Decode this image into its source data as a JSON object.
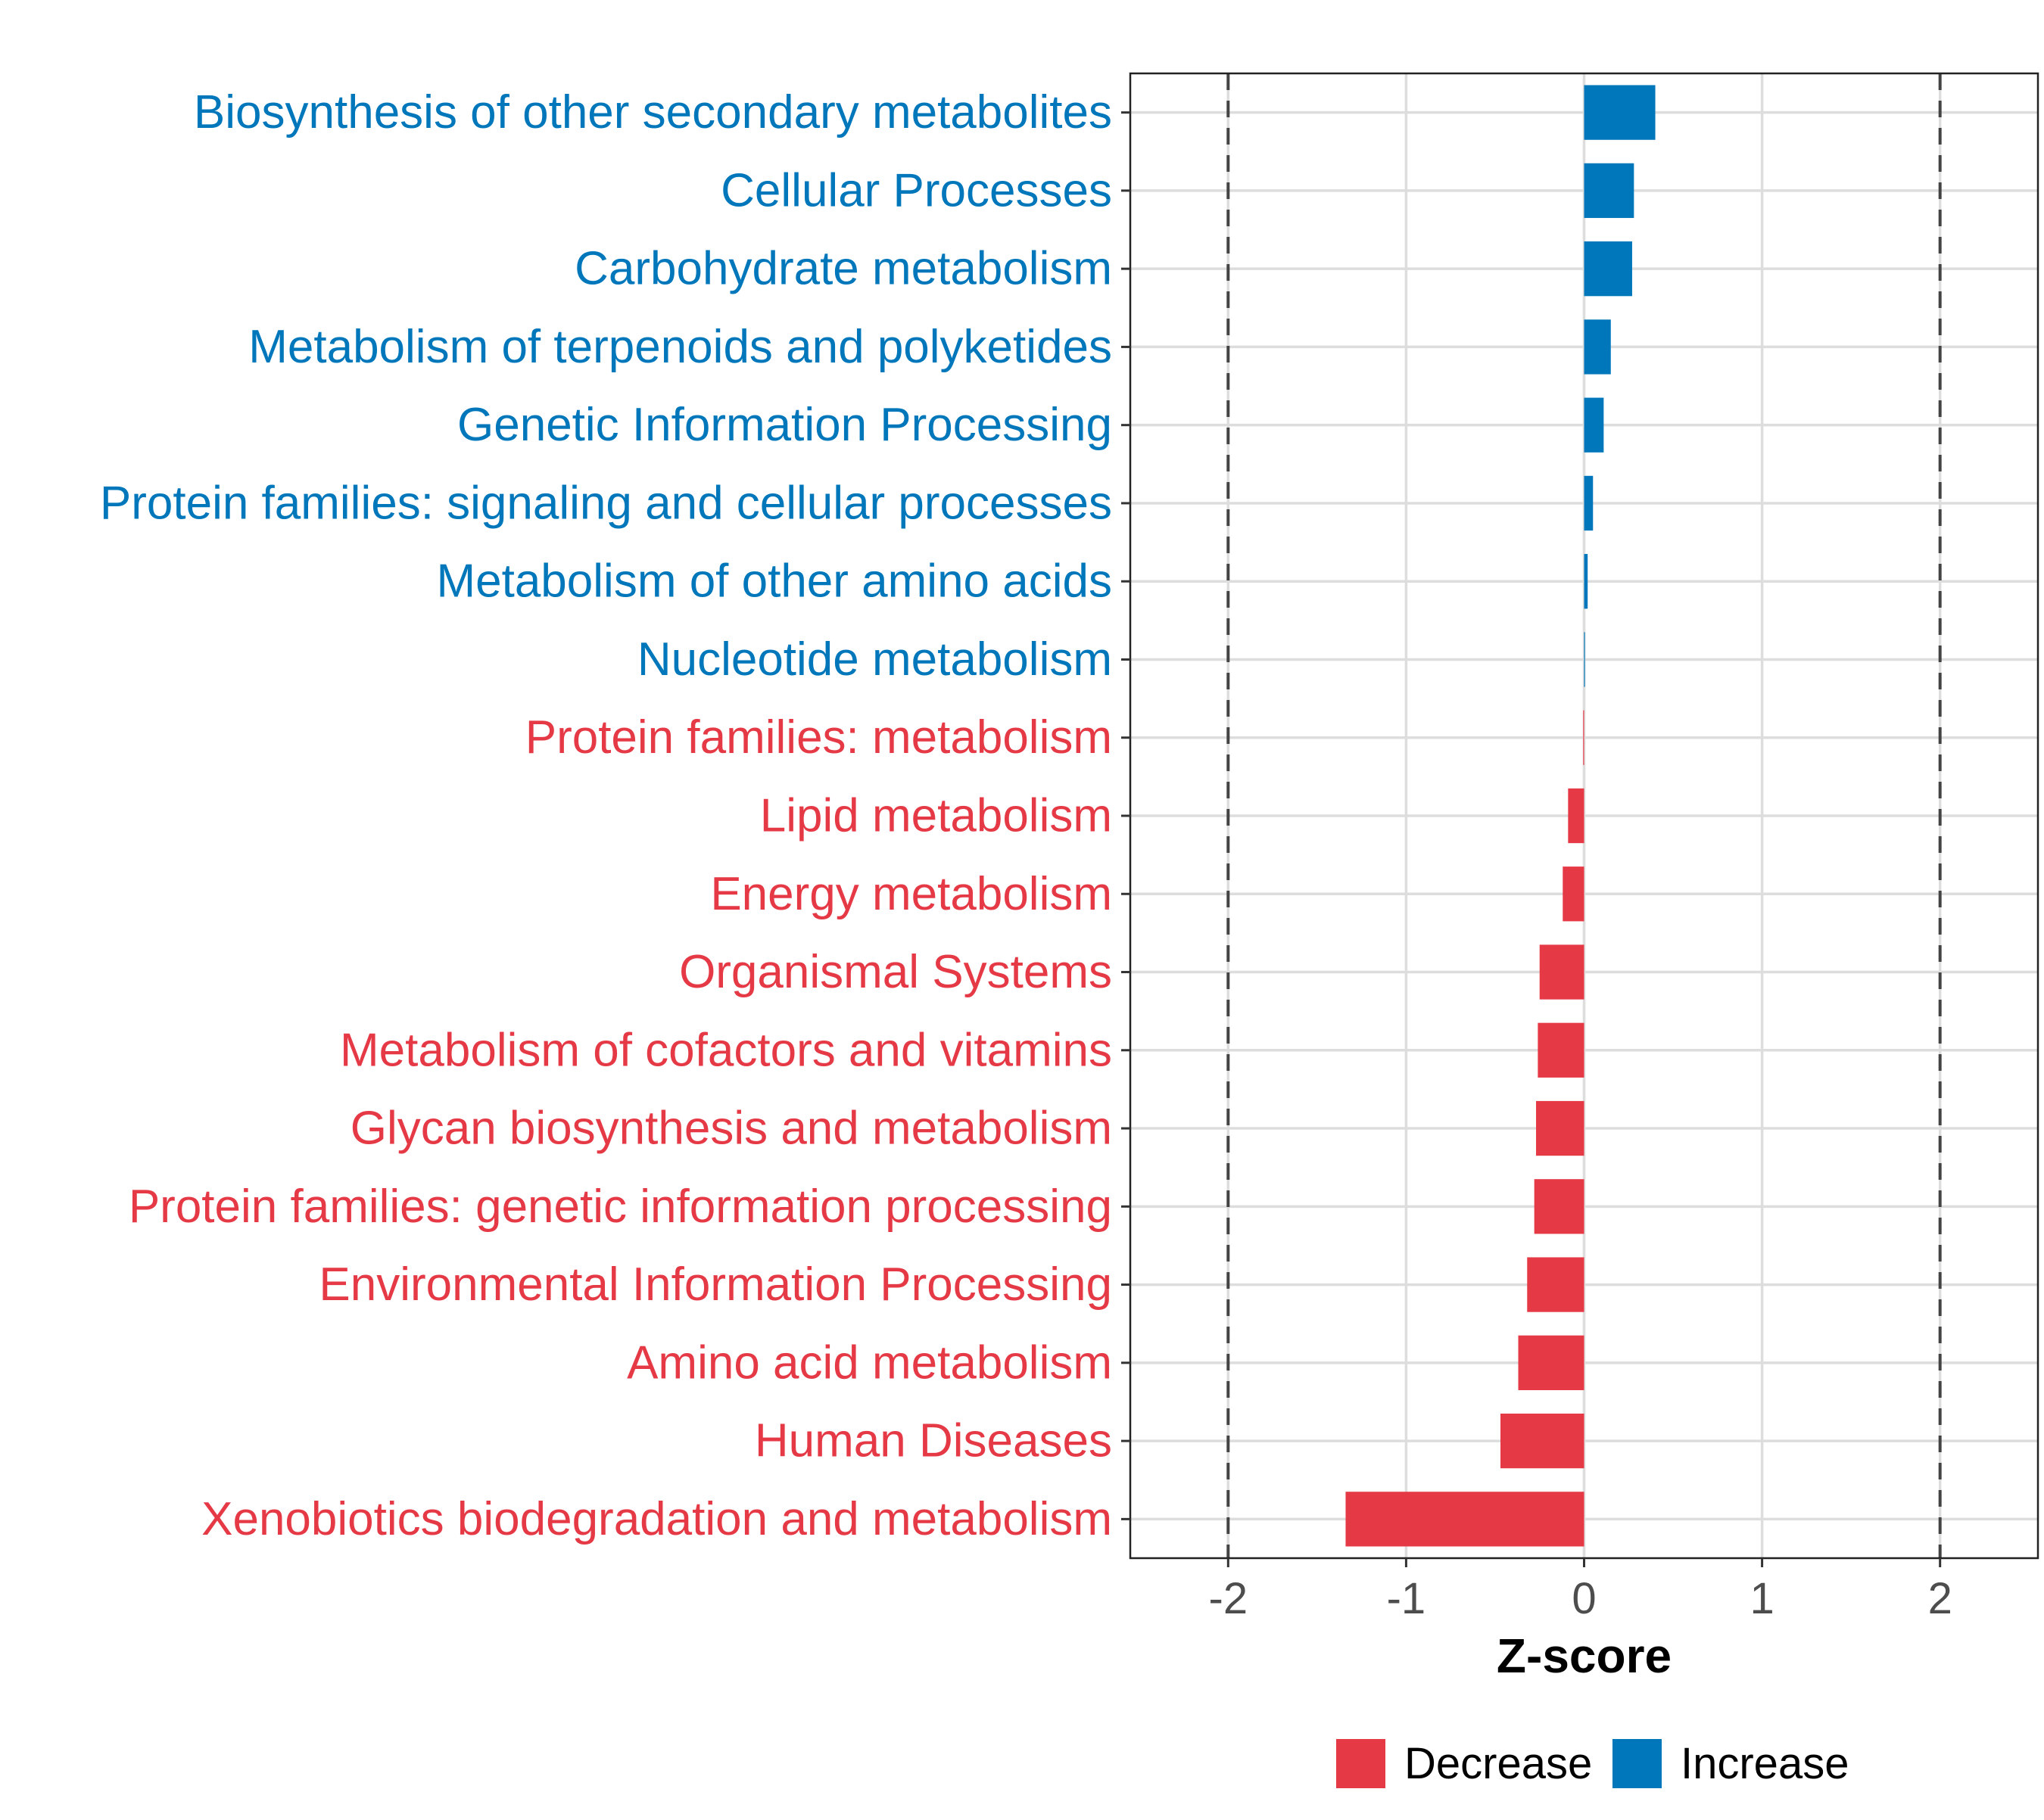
{
  "chart_data": {
    "type": "bar",
    "orientation": "horizontal",
    "xlabel": "Z-score",
    "ylabel": "",
    "xlim": [
      -2.55,
      2.55
    ],
    "x_ticks": [
      -2,
      -1,
      0,
      1,
      2
    ],
    "reference_lines": [
      -2,
      2
    ],
    "grid": true,
    "legend_position": "bottom",
    "colors": {
      "Decrease": "#E63946",
      "Increase": "#0077BB"
    },
    "legend": [
      {
        "name": "Decrease",
        "color": "#E63946"
      },
      {
        "name": "Increase",
        "color": "#0077BB"
      }
    ],
    "categories": [
      "Biosynthesis of other secondary metabolites",
      "Cellular Processes",
      "Carbohydrate metabolism",
      "Metabolism of terpenoids and polyketides",
      "Genetic Information Processing",
      "Protein families: signaling and cellular processes",
      "Metabolism of other amino acids",
      "Nucleotide metabolism",
      "Protein families: metabolism",
      "Lipid metabolism",
      "Energy metabolism",
      "Organismal Systems",
      "Metabolism of cofactors and vitamins",
      "Glycan biosynthesis and metabolism",
      "Protein families: genetic information processing",
      "Environmental Information Processing",
      "Amino acid metabolism",
      "Human Diseases",
      "Xenobiotics biodegradation and metabolism"
    ],
    "values": [
      0.4,
      0.28,
      0.27,
      0.15,
      0.11,
      0.05,
      0.02,
      0.005,
      -0.005,
      -0.09,
      -0.12,
      -0.25,
      -0.26,
      -0.27,
      -0.28,
      -0.32,
      -0.37,
      -0.47,
      -1.34
    ],
    "groups": [
      "Increase",
      "Increase",
      "Increase",
      "Increase",
      "Increase",
      "Increase",
      "Increase",
      "Increase",
      "Decrease",
      "Decrease",
      "Decrease",
      "Decrease",
      "Decrease",
      "Decrease",
      "Decrease",
      "Decrease",
      "Decrease",
      "Decrease",
      "Decrease"
    ]
  }
}
